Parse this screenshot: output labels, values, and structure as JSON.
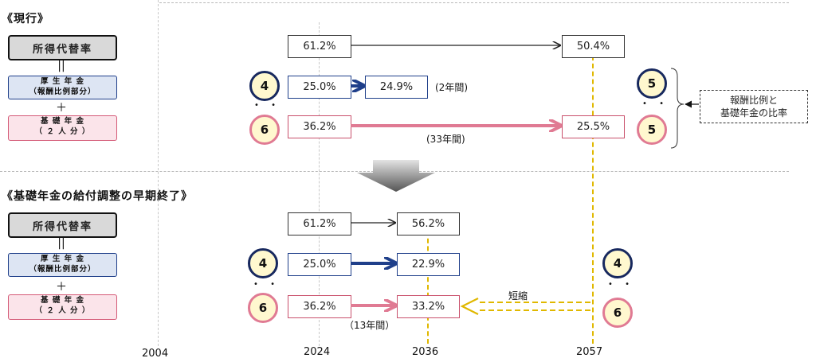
{
  "sections": {
    "current_title": "《現行》",
    "early_title": "《基礎年金の給付調整の早期終了》"
  },
  "labels": {
    "replacement_rate": "所得代替率",
    "equals": "||",
    "plus": "＋",
    "kosei_line1": "厚 生 年 金",
    "kosei_line2": "（報酬比例部分）",
    "kiso_line1": "基 礎 年 金",
    "kiso_line2": "（ ２ 人 分 ）"
  },
  "current": {
    "total_2024": "61.2%",
    "total_2057": "50.4%",
    "kosei_2024": "25.0%",
    "kosei_end": "24.9%",
    "kosei_period": "(2年間)",
    "kiso_2024": "36.2%",
    "kiso_2057": "25.5%",
    "kiso_period": "(33年間)",
    "ratio_left_top": "4",
    "ratio_left_bottom": "6",
    "ratio_right_top": "5",
    "ratio_right_bottom": "5",
    "ratio_dots": "• •",
    "note_line1": "報酬比例と",
    "note_line2": "基礎年金の比率"
  },
  "early": {
    "total_2024": "61.2%",
    "total_2036": "56.2%",
    "kosei_2024": "25.0%",
    "kosei_2036": "22.9%",
    "kiso_2024": "36.2%",
    "kiso_2036": "33.2%",
    "kiso_period": "（13年間）",
    "shorten_label": "短縮",
    "ratio_left_top": "4",
    "ratio_left_bottom": "6",
    "ratio_right_top": "4",
    "ratio_right_bottom": "6",
    "ratio_dots": "• •"
  },
  "years": [
    "2004",
    "2024",
    "2036",
    "2057"
  ],
  "colors": {
    "navy": "#17285e",
    "blue_arrow": "#1f3f8a",
    "pink_arrow": "#e07a93",
    "gold": "#e0b800",
    "circle_fill": "#fff8cf"
  }
}
